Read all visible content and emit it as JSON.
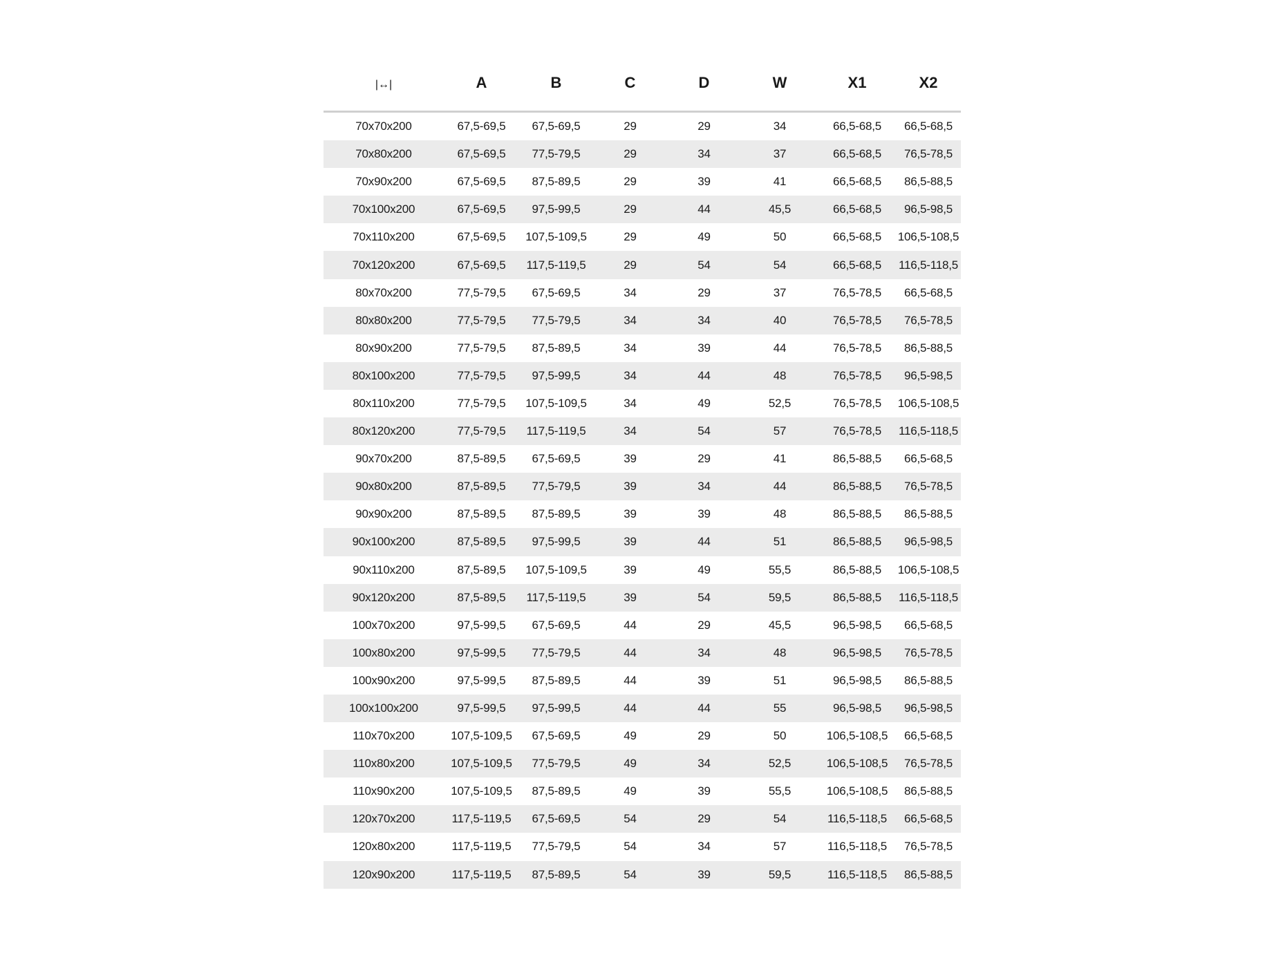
{
  "table": {
    "size_icon": "width-arrows-icon",
    "headers": [
      "A",
      "B",
      "C",
      "D",
      "W",
      "X1",
      "X2"
    ],
    "rows": [
      [
        "70x70x200",
        "67,5-69,5",
        "67,5-69,5",
        "29",
        "29",
        "34",
        "66,5-68,5",
        "66,5-68,5"
      ],
      [
        "70x80x200",
        "67,5-69,5",
        "77,5-79,5",
        "29",
        "34",
        "37",
        "66,5-68,5",
        "76,5-78,5"
      ],
      [
        "70x90x200",
        "67,5-69,5",
        "87,5-89,5",
        "29",
        "39",
        "41",
        "66,5-68,5",
        "86,5-88,5"
      ],
      [
        "70x100x200",
        "67,5-69,5",
        "97,5-99,5",
        "29",
        "44",
        "45,5",
        "66,5-68,5",
        "96,5-98,5"
      ],
      [
        "70x110x200",
        "67,5-69,5",
        "107,5-109,5",
        "29",
        "49",
        "50",
        "66,5-68,5",
        "106,5-108,5"
      ],
      [
        "70x120x200",
        "67,5-69,5",
        "117,5-119,5",
        "29",
        "54",
        "54",
        "66,5-68,5",
        "116,5-118,5"
      ],
      [
        "80x70x200",
        "77,5-79,5",
        "67,5-69,5",
        "34",
        "29",
        "37",
        "76,5-78,5",
        "66,5-68,5"
      ],
      [
        "80x80x200",
        "77,5-79,5",
        "77,5-79,5",
        "34",
        "34",
        "40",
        "76,5-78,5",
        "76,5-78,5"
      ],
      [
        "80x90x200",
        "77,5-79,5",
        "87,5-89,5",
        "34",
        "39",
        "44",
        "76,5-78,5",
        "86,5-88,5"
      ],
      [
        "80x100x200",
        "77,5-79,5",
        "97,5-99,5",
        "34",
        "44",
        "48",
        "76,5-78,5",
        "96,5-98,5"
      ],
      [
        "80x110x200",
        "77,5-79,5",
        "107,5-109,5",
        "34",
        "49",
        "52,5",
        "76,5-78,5",
        "106,5-108,5"
      ],
      [
        "80x120x200",
        "77,5-79,5",
        "117,5-119,5",
        "34",
        "54",
        "57",
        "76,5-78,5",
        "116,5-118,5"
      ],
      [
        "90x70x200",
        "87,5-89,5",
        "67,5-69,5",
        "39",
        "29",
        "41",
        "86,5-88,5",
        "66,5-68,5"
      ],
      [
        "90x80x200",
        "87,5-89,5",
        "77,5-79,5",
        "39",
        "34",
        "44",
        "86,5-88,5",
        "76,5-78,5"
      ],
      [
        "90x90x200",
        "87,5-89,5",
        "87,5-89,5",
        "39",
        "39",
        "48",
        "86,5-88,5",
        "86,5-88,5"
      ],
      [
        "90x100x200",
        "87,5-89,5",
        "97,5-99,5",
        "39",
        "44",
        "51",
        "86,5-88,5",
        "96,5-98,5"
      ],
      [
        "90x110x200",
        "87,5-89,5",
        "107,5-109,5",
        "39",
        "49",
        "55,5",
        "86,5-88,5",
        "106,5-108,5"
      ],
      [
        "90x120x200",
        "87,5-89,5",
        "117,5-119,5",
        "39",
        "54",
        "59,5",
        "86,5-88,5",
        "116,5-118,5"
      ],
      [
        "100x70x200",
        "97,5-99,5",
        "67,5-69,5",
        "44",
        "29",
        "45,5",
        "96,5-98,5",
        "66,5-68,5"
      ],
      [
        "100x80x200",
        "97,5-99,5",
        "77,5-79,5",
        "44",
        "34",
        "48",
        "96,5-98,5",
        "76,5-78,5"
      ],
      [
        "100x90x200",
        "97,5-99,5",
        "87,5-89,5",
        "44",
        "39",
        "51",
        "96,5-98,5",
        "86,5-88,5"
      ],
      [
        "100x100x200",
        "97,5-99,5",
        "97,5-99,5",
        "44",
        "44",
        "55",
        "96,5-98,5",
        "96,5-98,5"
      ],
      [
        "110x70x200",
        "107,5-109,5",
        "67,5-69,5",
        "49",
        "29",
        "50",
        "106,5-108,5",
        "66,5-68,5"
      ],
      [
        "110x80x200",
        "107,5-109,5",
        "77,5-79,5",
        "49",
        "34",
        "52,5",
        "106,5-108,5",
        "76,5-78,5"
      ],
      [
        "110x90x200",
        "107,5-109,5",
        "87,5-89,5",
        "49",
        "39",
        "55,5",
        "106,5-108,5",
        "86,5-88,5"
      ],
      [
        "120x70x200",
        "117,5-119,5",
        "67,5-69,5",
        "54",
        "29",
        "54",
        "116,5-118,5",
        "66,5-68,5"
      ],
      [
        "120x80x200",
        "117,5-119,5",
        "77,5-79,5",
        "54",
        "34",
        "57",
        "116,5-118,5",
        "76,5-78,5"
      ],
      [
        "120x90x200",
        "117,5-119,5",
        "87,5-89,5",
        "54",
        "39",
        "59,5",
        "116,5-118,5",
        "86,5-88,5"
      ]
    ]
  }
}
